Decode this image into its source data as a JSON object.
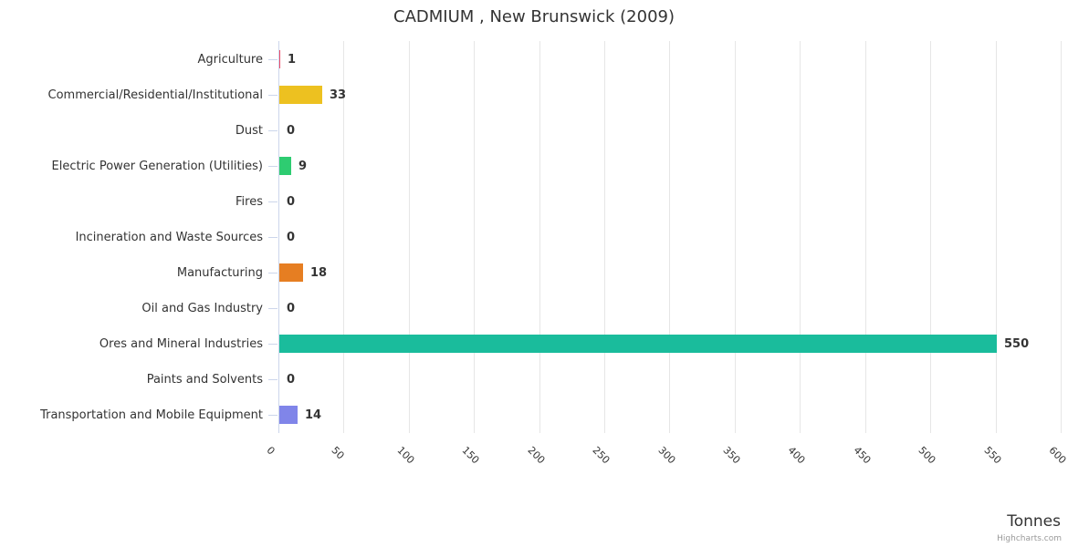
{
  "title": "CADMIUM , New Brunswick (2009)",
  "x_axis_title": "Tonnes",
  "credit": "Highcharts.com",
  "chart_data": {
    "type": "bar",
    "orientation": "horizontal",
    "title": "CADMIUM , New Brunswick (2009)",
    "xlabel": "Tonnes",
    "ylabel": "",
    "categories": [
      "Agriculture",
      "Commercial/Residential/Institutional",
      "Dust",
      "Electric Power Generation (Utilities)",
      "Fires",
      "Incineration and Waste Sources",
      "Manufacturing",
      "Oil and Gas Industry",
      "Ores and Mineral Industries",
      "Paints and Solvents",
      "Transportation and Mobile Equipment"
    ],
    "values": [
      1,
      33,
      0,
      9,
      0,
      0,
      18,
      0,
      550,
      0,
      14
    ],
    "colors": [
      "#ec4c68",
      "#edc120",
      null,
      "#2ecc71",
      null,
      null,
      "#e67e22",
      null,
      "#1abc9c",
      null,
      "#8085e9"
    ],
    "xlim": [
      0,
      600
    ],
    "tick_interval": 50,
    "tick_labels": [
      "0",
      "50",
      "100",
      "150",
      "200",
      "250",
      "300",
      "350",
      "400",
      "450",
      "500",
      "550",
      "600"
    ],
    "grid": true,
    "legend": "none",
    "value_labels_shown": true,
    "colors_meta": {
      "grid_color": "#e6e6e6",
      "axis_line_color": "#ccd6eb",
      "label_color": "#333333",
      "credit_color": "#999999"
    }
  }
}
